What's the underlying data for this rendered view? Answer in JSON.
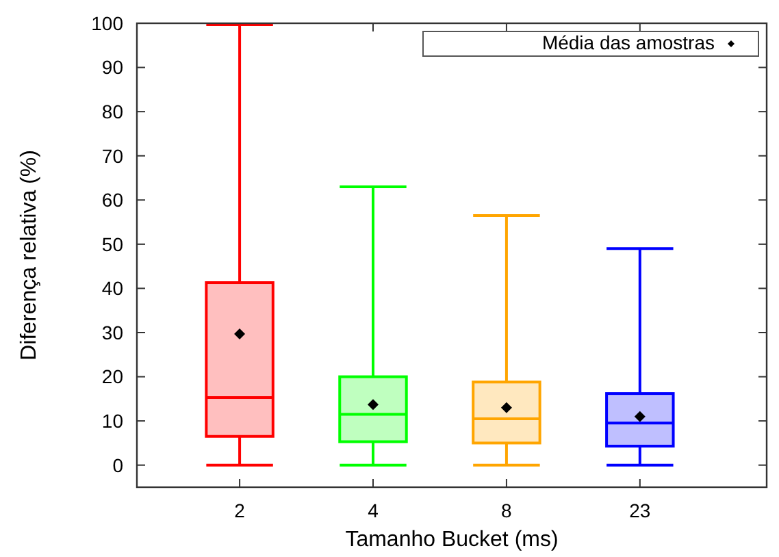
{
  "chart_data": {
    "type": "box",
    "xlabel": "Tamanho Bucket (ms)",
    "ylabel": "Diferença relativa (%)",
    "categories": [
      "2",
      "4",
      "8",
      "23"
    ],
    "colors": [
      "#ff0000",
      "#00ff00",
      "#ffa500",
      "#0000ff"
    ],
    "boxes": [
      {
        "low": 0,
        "q1": 6.5,
        "median": 15.3,
        "q3": 41.3,
        "high": 99.7
      },
      {
        "low": 0,
        "q1": 5.3,
        "median": 11.5,
        "q3": 20,
        "high": 63
      },
      {
        "low": 0,
        "q1": 5,
        "median": 10.5,
        "q3": 18.8,
        "high": 56.5
      },
      {
        "low": 0,
        "q1": 4.3,
        "median": 9.5,
        "q3": 16.2,
        "high": 49
      }
    ],
    "series": [
      {
        "type": "scatter",
        "name": "Média das amostras",
        "color": "#000000",
        "x": [
          "2",
          "4",
          "8",
          "23"
        ],
        "values": [
          29.7,
          13.7,
          13,
          11
        ]
      }
    ],
    "ylim": [
      -5,
      100
    ],
    "yticks": [
      0,
      10,
      20,
      30,
      40,
      50,
      60,
      70,
      80,
      90,
      100
    ],
    "grid": false,
    "legend": "top right",
    "marker": "diamond"
  }
}
